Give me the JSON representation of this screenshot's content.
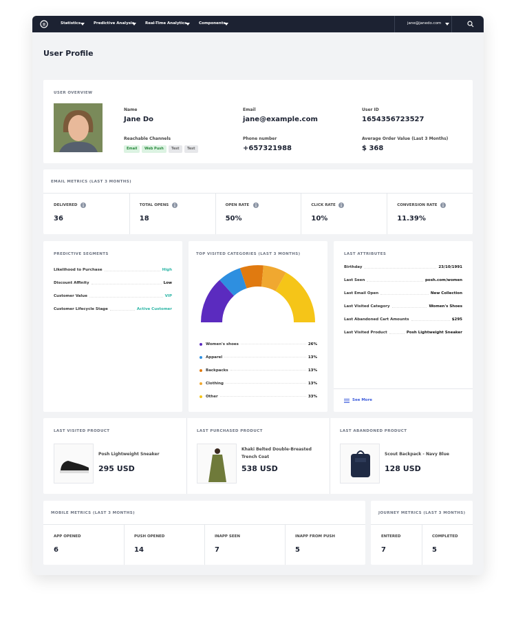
{
  "nav": {
    "items": [
      "Statistics",
      "Predictive Analysis",
      "Real-Time Analytics",
      "Components"
    ],
    "user": "jane@janedo.com"
  },
  "page_title": "User Profile",
  "user_overview": {
    "title": "USER OVERVIEW",
    "fields": [
      {
        "label": "Name",
        "value": "Jane Do"
      },
      {
        "label": "Email",
        "value": "jane@example.com"
      },
      {
        "label": "User ID",
        "value": "1654356723527"
      },
      {
        "label": "Phone number",
        "value": "+657321988"
      },
      {
        "label": "Average Order Value (Last 3 Months)",
        "value": "$ 368"
      }
    ],
    "channels_label": "Reachable Channels",
    "channels": [
      "Email",
      "Web Push",
      "Test",
      "Test"
    ]
  },
  "email_metrics": {
    "title": "EMAIL METRICS (LAST 3 MONTHS)",
    "metrics": [
      {
        "label": "DELIVERED",
        "value": "36"
      },
      {
        "label": "TOTAL OPENS",
        "value": "18"
      },
      {
        "label": "OPEN RATE",
        "value": "50%"
      },
      {
        "label": "CLICK RATE",
        "value": "10%"
      },
      {
        "label": "CONVERSION RATE",
        "value": "11.39%"
      }
    ]
  },
  "predictive_segments": {
    "title": "PREDICTIVE SEGMENTS",
    "rows": [
      [
        "Likelihood to Purchase",
        "High"
      ],
      [
        "Discount Affinity",
        "Low"
      ],
      [
        "Customer Value",
        "VIP"
      ],
      [
        "Customer Lifecycle Stage",
        "Active Customer"
      ]
    ]
  },
  "top_categories": {
    "title": "TOP VISITED CATEGORIES (LAST 3 MONTHS)",
    "categories": [
      "Women's shoes",
      "Apparel",
      "Backpacks",
      "Clothing",
      "Other"
    ],
    "values": [
      26,
      13,
      13,
      13,
      33
    ],
    "value_labels": [
      "26%",
      "13%",
      "13%",
      "13%",
      "33%"
    ],
    "colors": [
      "#5b2bbf",
      "#2e8fe0",
      "#e07a10",
      "#f0a830",
      "#f5c518"
    ]
  },
  "last_attributes": {
    "title": "LAST ATTRIBUTES",
    "rows": [
      [
        "Birthday",
        "23/10/1991"
      ],
      [
        "Last Seen",
        "posh.com/women"
      ],
      [
        "Last Email Open",
        "New Collection"
      ],
      [
        "Last Visited Category",
        "Women's Shoes"
      ],
      [
        "Last Abandoned Cart Amounts",
        "$295"
      ],
      [
        "Last Visited Product",
        "Posh Lightweight Sneaker"
      ]
    ],
    "link": "See More"
  },
  "products": [
    {
      "title": "LAST VISITED PRODUCT",
      "name": "Posh Lightweight Sneaker",
      "price": "295 USD"
    },
    {
      "title": "LAST PURCHASED PRODUCT",
      "name": "Khaki Belted Double-Breasted Trench Coat",
      "price": "538 USD"
    },
    {
      "title": "LAST ABANDONED PRODUCT",
      "name": "Scout Backpack - Navy Blue",
      "price": "128 USD"
    }
  ],
  "mobile_metrics": {
    "title": "MOBILE METRICS (LAST 3 MONTHS)",
    "metrics": [
      {
        "label": "APP OPENED",
        "value": "6"
      },
      {
        "label": "PUSH OPENED",
        "value": "14"
      },
      {
        "label": "INAPP SEEN",
        "value": "7"
      },
      {
        "label": "INAPP FROM PUSH",
        "value": "5"
      }
    ]
  },
  "journey_metrics": {
    "title": "JOURNEY METRICS (LAST 3 MONTHS)",
    "metrics": [
      {
        "label": "ENTERED",
        "value": "7"
      },
      {
        "label": "COMPLETED",
        "value": "5"
      }
    ]
  }
}
